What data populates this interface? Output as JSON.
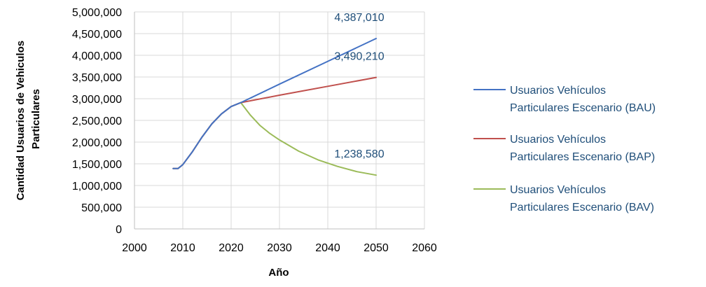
{
  "chart_data": {
    "type": "line",
    "title": "",
    "xlabel": "Año",
    "ylabel": "Cantidad Usuarios de Vehículos Particulares",
    "ylabel_lines": [
      "Cantidad Usuarios de Vehiculos",
      "Particulares"
    ],
    "xlim": [
      2000,
      2060
    ],
    "ylim": [
      0,
      5000000
    ],
    "x_ticks": [
      "2000",
      "2010",
      "2020",
      "2030",
      "2040",
      "2050",
      "2060"
    ],
    "y_ticks": [
      "0",
      "500,000",
      "1,000,000",
      "1,500,000",
      "2,000,000",
      "2,500,000",
      "3,000,000",
      "3,500,000",
      "4,000,000",
      "4,500,000",
      "5,000,000"
    ],
    "grid": true,
    "legend_position": "right",
    "series": [
      {
        "name": "Usuarios Vehículos Particulares Escenario (BAU)",
        "legend_lines": [
          "Usuarios Vehículos",
          "Particulares Escenario (BAU)"
        ],
        "color": "#4472C4",
        "x": [
          2008,
          2009,
          2010,
          2012,
          2014,
          2016,
          2018,
          2020,
          2022,
          2030,
          2040,
          2050
        ],
        "y": [
          1390000,
          1390000,
          1480000,
          1780000,
          2120000,
          2420000,
          2650000,
          2820000,
          2910000,
          3336000,
          3861000,
          4387010
        ]
      },
      {
        "name": "Usuarios Vehículos Particulares Escenario (BAP)",
        "legend_lines": [
          "Usuarios Vehículos",
          "Particulares Escenario (BAP)"
        ],
        "color": "#C0504D",
        "x": [
          2008,
          2009,
          2010,
          2012,
          2014,
          2016,
          2018,
          2020,
          2022,
          2030,
          2040,
          2050
        ],
        "y": [
          1390000,
          1390000,
          1480000,
          1780000,
          2120000,
          2420000,
          2650000,
          2820000,
          2910000,
          3081000,
          3286000,
          3490210
        ]
      },
      {
        "name": "Usuarios Vehículos Particulares Escenario (BAV)",
        "legend_lines": [
          "Usuarios Vehículos",
          "Particulares Escenario (BAV)"
        ],
        "color": "#9BBB59",
        "x": [
          2008,
          2009,
          2010,
          2012,
          2014,
          2016,
          2018,
          2020,
          2022,
          2024,
          2026,
          2028,
          2030,
          2034,
          2038,
          2042,
          2046,
          2050
        ],
        "y": [
          1390000,
          1390000,
          1480000,
          1780000,
          2120000,
          2420000,
          2650000,
          2820000,
          2910000,
          2620000,
          2380000,
          2200000,
          2050000,
          1790000,
          1590000,
          1440000,
          1320000,
          1238580
        ]
      }
    ],
    "annotations": [
      {
        "text": "4,387,010",
        "x": 2050,
        "y": 4387010
      },
      {
        "text": "3,490,210",
        "x": 2050,
        "y": 3490210
      },
      {
        "text": "1,238,580",
        "x": 2050,
        "y": 1238580
      }
    ]
  }
}
